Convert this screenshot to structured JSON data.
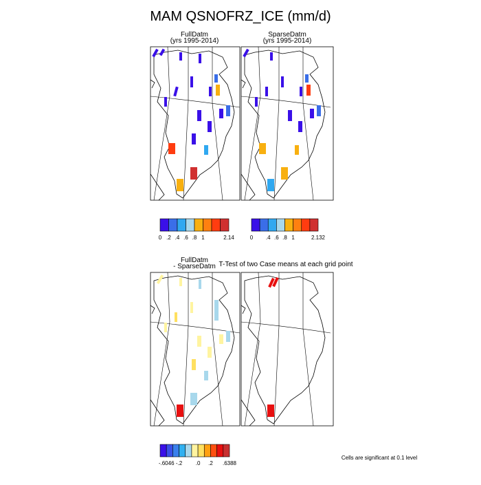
{
  "title": "MAM QSNOFRZ_ICE (mm/d)",
  "panels": [
    {
      "title": [
        "FullDatm",
        "(yrs 1995-2014)"
      ]
    },
    {
      "title": [
        "SparseDatm",
        "(yrs 1995-2014)"
      ]
    },
    {
      "title": [
        "FullDatm",
        "- SparseDatm"
      ]
    },
    {
      "title": [
        "T-Test of two Case means at each grid point"
      ]
    }
  ],
  "colorbars": [
    {
      "colors": [
        "#3a10e8",
        "#3a6ee8",
        "#30a8f0",
        "#a8d8ec",
        "#f8b010",
        "#ff8010",
        "#ff3c10",
        "#d03030"
      ],
      "labels": [
        "0",
        ".2",
        ".4",
        ".6",
        ".8",
        "1",
        null,
        null,
        "2.14"
      ]
    },
    {
      "colors": [
        "#3a10e8",
        "#3a6ee8",
        "#30a8f0",
        "#a8d8ec",
        "#f8b010",
        "#ff8010",
        "#ff3c10",
        "#d03030"
      ],
      "labels": [
        "0",
        null,
        ".4",
        ".6",
        ".8",
        "1",
        null,
        null,
        "2.132"
      ]
    },
    {
      "colors": [
        "#3a10e8",
        "#3a50e8",
        "#3a80ec",
        "#30b0f0",
        "#a8d8ec",
        "#fff4a0",
        "#ffe060",
        "#ffa010",
        "#ff5010",
        "#e81010",
        "#c83030"
      ],
      "labels": [
        null,
        "-.6046",
        null,
        "-.2",
        null,
        null,
        ".0",
        null,
        ".2",
        null,
        null,
        ".6388"
      ]
    }
  ],
  "note": "Cells are significant at 0.1 level"
}
